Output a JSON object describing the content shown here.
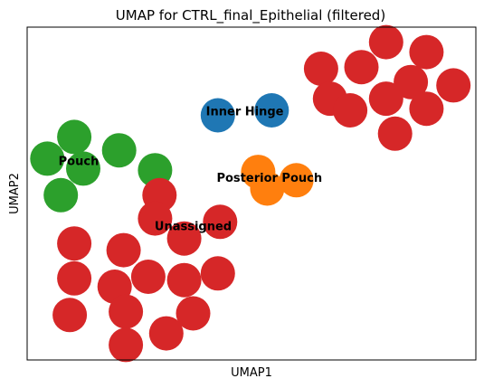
{
  "chart_data": {
    "type": "scatter",
    "title": "UMAP for CTRL_final_Epithelial (filtered)",
    "xlabel": "UMAP1",
    "ylabel": "UMAP2",
    "xlim": [
      0,
      100
    ],
    "ylim": [
      0,
      100
    ],
    "ticks": "none",
    "grid": false,
    "legend": "none",
    "series": [
      {
        "name": "Inner Hinge",
        "color": "#1f77b4",
        "points": [
          [
            42.5,
            73.5
          ],
          [
            54.5,
            75.0
          ]
        ],
        "label_at": [
          48.5,
          74.5
        ]
      },
      {
        "name": "Posterior Pouch",
        "color": "#ff7f0e",
        "points": [
          [
            51.5,
            56.5
          ],
          [
            53.5,
            51.5
          ],
          [
            60.0,
            54.0
          ]
        ],
        "label_at": [
          54.0,
          54.5
        ]
      },
      {
        "name": "Pouch",
        "color": "#2ca02c",
        "points": [
          [
            10.5,
            67.0
          ],
          [
            20.5,
            63.0
          ],
          [
            4.5,
            60.5
          ],
          [
            12.5,
            57.5
          ],
          [
            28.5,
            57.0
          ],
          [
            7.5,
            49.5
          ]
        ],
        "label_at": [
          11.5,
          59.5
        ]
      },
      {
        "name": "Unassigned",
        "color": "#d62728",
        "points": [
          [
            80.0,
            95.5
          ],
          [
            89.0,
            92.5
          ],
          [
            65.5,
            87.5
          ],
          [
            74.5,
            88.0
          ],
          [
            85.5,
            83.5
          ],
          [
            95.0,
            82.5
          ],
          [
            67.5,
            78.5
          ],
          [
            80.0,
            78.5
          ],
          [
            72.0,
            75.0
          ],
          [
            89.0,
            75.5
          ],
          [
            82.0,
            68.0
          ],
          [
            29.5,
            49.5
          ],
          [
            28.5,
            42.5
          ],
          [
            43.0,
            41.5
          ],
          [
            35.0,
            36.5
          ],
          [
            10.5,
            35.0
          ],
          [
            21.5,
            33.0
          ],
          [
            42.5,
            26.0
          ],
          [
            27.0,
            25.0
          ],
          [
            35.0,
            24.0
          ],
          [
            10.5,
            24.5
          ],
          [
            19.5,
            22.0
          ],
          [
            37.0,
            14.0
          ],
          [
            22.0,
            14.5
          ],
          [
            9.5,
            13.5
          ],
          [
            31.0,
            8.0
          ],
          [
            22.0,
            4.5
          ]
        ],
        "label_at": [
          37.0,
          40.0
        ]
      }
    ]
  }
}
